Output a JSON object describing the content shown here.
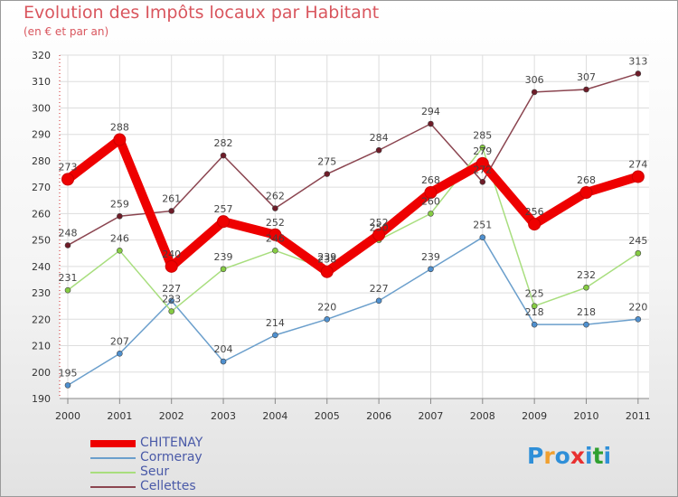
{
  "header": {
    "title": "Evolution des Impôts locaux par Habitant",
    "subtitle": "(en € et par an)"
  },
  "brand": {
    "logo_text": "Proxiti",
    "logo_colors": [
      "#2f8fd8",
      "#f0a030",
      "#2f8fd8",
      "#e83030",
      "#2f8fd8",
      "#30a030",
      "#2f8fd8"
    ]
  },
  "chart_data": {
    "type": "line",
    "title": "Evolution des Impôts locaux par Habitant",
    "subtitle": "(en € et par an)",
    "xlabel": "",
    "ylabel": "",
    "ylim": [
      190,
      320
    ],
    "y_ticks": [
      190,
      200,
      210,
      220,
      230,
      240,
      250,
      260,
      270,
      280,
      290,
      300,
      310,
      320
    ],
    "categories": [
      "2000",
      "2001",
      "2002",
      "2003",
      "2004",
      "2005",
      "2006",
      "2007",
      "2008",
      "2009",
      "2010",
      "2011"
    ],
    "grid": true,
    "legend_position": "bottom-left",
    "series": [
      {
        "name": "CHITENAY",
        "color": "#ee0000",
        "marker": "#ee0000",
        "values": [
          273,
          288,
          240,
          257,
          252,
          238,
          252,
          268,
          279,
          256,
          268,
          274
        ]
      },
      {
        "name": "Cormeray",
        "color": "#6b9fcc",
        "marker": "#4f90cf",
        "values": [
          195,
          207,
          227,
          204,
          214,
          220,
          227,
          239,
          251,
          218,
          218,
          220
        ]
      },
      {
        "name": "Seur",
        "color": "#a8de7e",
        "marker": "#86cc43",
        "values": [
          231,
          246,
          223,
          239,
          246,
          239,
          250,
          260,
          285,
          225,
          232,
          245
        ]
      },
      {
        "name": "Cellettes",
        "color": "#8b4550",
        "marker": "#6e1c28",
        "values": [
          248,
          259,
          261,
          282,
          262,
          275,
          284,
          294,
          272,
          306,
          307,
          313
        ]
      }
    ]
  }
}
